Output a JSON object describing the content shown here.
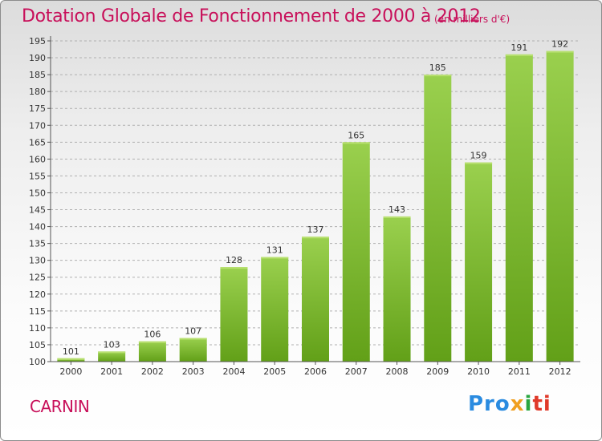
{
  "chart_data": {
    "type": "bar",
    "title": "Dotation Globale de Fonctionnement de 2000 à 2012",
    "unit": "(en milliers d'€)",
    "categories": [
      "2000",
      "2001",
      "2002",
      "2003",
      "2004",
      "2005",
      "2006",
      "2007",
      "2008",
      "2009",
      "2010",
      "2011",
      "2012"
    ],
    "values": [
      101,
      103,
      106,
      107,
      128,
      131,
      137,
      165,
      143,
      185,
      159,
      191,
      192
    ],
    "ylim": [
      100,
      195
    ],
    "yticks": [
      100,
      105,
      110,
      115,
      120,
      125,
      130,
      135,
      140,
      145,
      150,
      155,
      160,
      165,
      170,
      175,
      180,
      185,
      190,
      195
    ],
    "grid": "horizontal dashed",
    "bar_color": "#7cbf2e"
  },
  "commune": "CARNIN",
  "logo": {
    "parts": [
      "Pro",
      "x",
      "i",
      "ti"
    ]
  }
}
